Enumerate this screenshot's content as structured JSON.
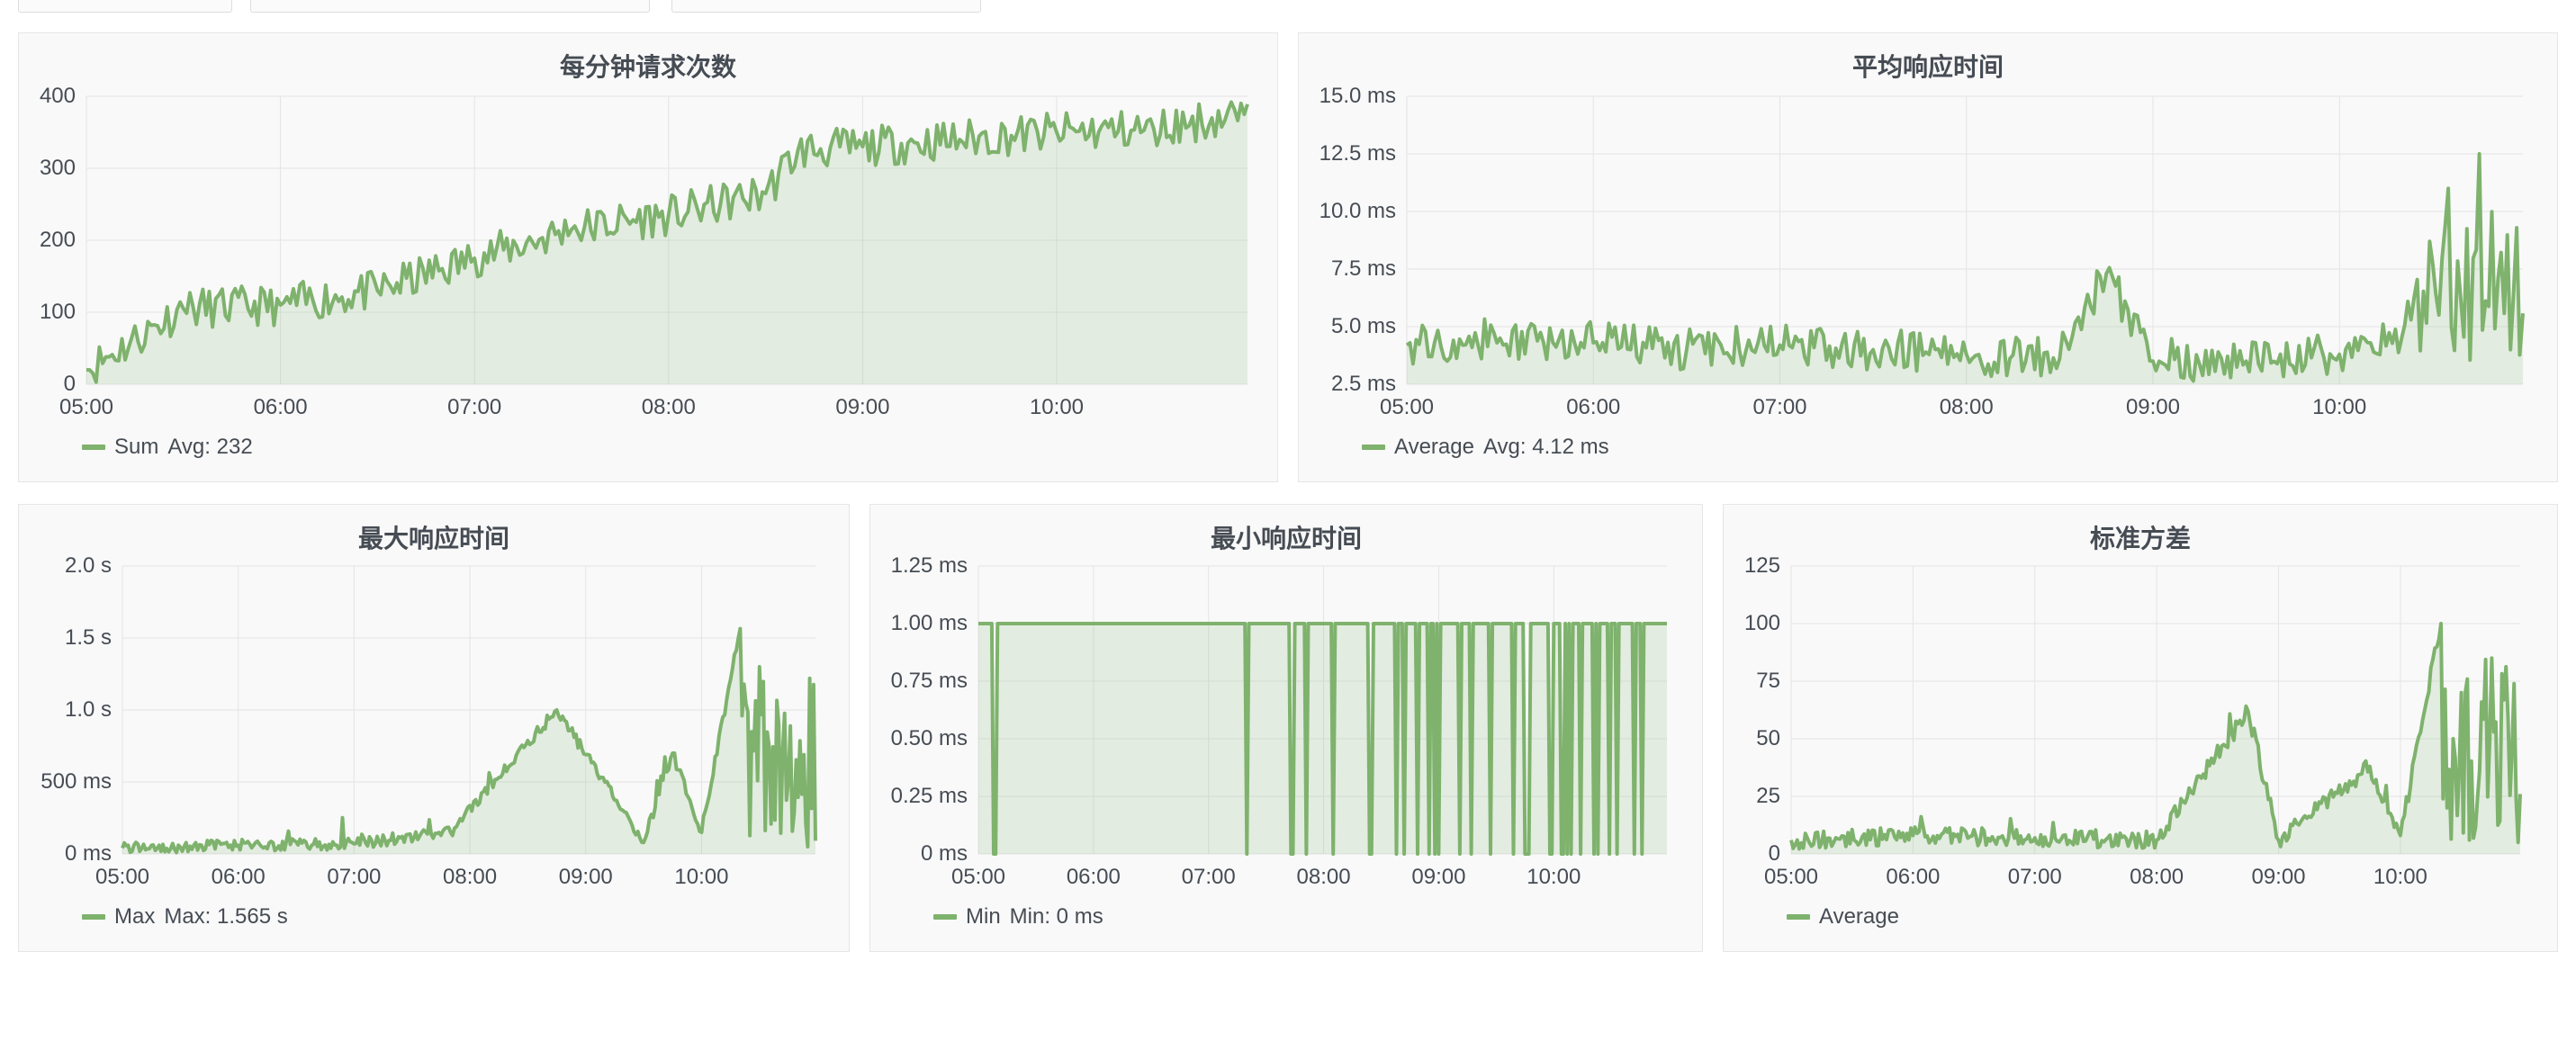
{
  "colors": {
    "series": "#7eb26d",
    "fill": "rgba(126,178,109,0.18)",
    "grid": "#e4e4e4"
  },
  "panels": [
    {
      "title": "每分钟请求次数",
      "legend": {
        "name": "Sum",
        "stat": "Avg: 232"
      },
      "chart_data": {
        "type": "area",
        "title": "每分钟请求次数",
        "x_ticks": [
          "05:00",
          "06:00",
          "07:00",
          "08:00",
          "09:00",
          "10:00"
        ],
        "y_ticks": [
          "0",
          "100",
          "200",
          "300",
          "400"
        ],
        "xlim": [
          "05:00",
          "10:59"
        ],
        "ylim": [
          0,
          400
        ],
        "grid": true,
        "legend_position": "bottom-left",
        "series": [
          {
            "name": "Sum",
            "x": [
              "05:00",
              "05:30",
              "06:00",
              "06:30",
              "07:00",
              "07:30",
              "08:00",
              "08:30",
              "08:40",
              "09:00",
              "09:30",
              "10:00",
              "10:30",
              "10:58"
            ],
            "values": [
              20,
              105,
              110,
              130,
              175,
              215,
              235,
              265,
              325,
              330,
              340,
              350,
              355,
              375
            ]
          }
        ]
      }
    },
    {
      "title": "平均响应时间",
      "legend": {
        "name": "Average",
        "stat": "Avg: 4.12 ms"
      },
      "chart_data": {
        "type": "area",
        "title": "平均响应时间",
        "x_ticks": [
          "05:00",
          "06:00",
          "07:00",
          "08:00",
          "09:00",
          "10:00"
        ],
        "y_ticks": [
          "2.5 ms",
          "5.0 ms",
          "7.5 ms",
          "10.0 ms",
          "12.5 ms",
          "15.0 ms"
        ],
        "xlim": [
          "05:00",
          "10:59"
        ],
        "ylim": [
          2.5,
          15
        ],
        "grid": true,
        "legend_position": "bottom-left",
        "series": [
          {
            "name": "Average",
            "x": [
              "05:00",
              "05:30",
              "06:00",
              "06:30",
              "07:00",
              "07:30",
              "08:00",
              "08:30",
              "08:45",
              "09:00",
              "09:30",
              "10:00",
              "10:20",
              "10:35",
              "10:45",
              "10:55"
            ],
            "values": [
              4.2,
              4.5,
              4.3,
              4.0,
              4.2,
              4.0,
              3.8,
              3.6,
              7.3,
              3.5,
              3.5,
              3.8,
              4.5,
              11.0,
              12.5,
              4.0
            ]
          }
        ]
      }
    },
    {
      "title": "最大响应时间",
      "legend": {
        "name": "Max",
        "stat": "Max: 1.565 s"
      },
      "chart_data": {
        "type": "area",
        "title": "最大响应时间",
        "x_ticks": [
          "05:00",
          "06:00",
          "07:00",
          "08:00",
          "09:00",
          "10:00"
        ],
        "y_ticks": [
          "0 ms",
          "500 ms",
          "1.0 s",
          "1.5 s",
          "2.0 s"
        ],
        "xlim": [
          "05:00",
          "10:59"
        ],
        "ylim": [
          0,
          2000
        ],
        "grid": true,
        "legend_position": "bottom-left",
        "series": [
          {
            "name": "Max",
            "x": [
              "05:00",
              "06:00",
              "07:00",
              "07:50",
              "08:45",
              "09:30",
              "09:45",
              "10:00",
              "10:20",
              "10:30",
              "10:40",
              "10:55"
            ],
            "values": [
              40,
              60,
              70,
              150,
              1000,
              80,
              700,
              150,
              1565,
              1300,
              900,
              50
            ]
          }
        ]
      }
    },
    {
      "title": "最小响应时间",
      "legend": {
        "name": "Min",
        "stat": "Min: 0 ms"
      },
      "chart_data": {
        "type": "area",
        "title": "最小响应时间",
        "x_ticks": [
          "05:00",
          "06:00",
          "07:00",
          "08:00",
          "09:00",
          "10:00"
        ],
        "y_ticks": [
          "0 ms",
          "0.25 ms",
          "0.50 ms",
          "0.75 ms",
          "1.00 ms",
          "1.25 ms"
        ],
        "xlim": [
          "05:00",
          "10:59"
        ],
        "ylim": [
          0,
          1.25
        ],
        "grid": true,
        "legend_position": "bottom-left",
        "series": [
          {
            "name": "Min",
            "x": [
              "05:00",
              "05:10",
              "07:20",
              "07:40",
              "08:00",
              "08:20",
              "08:40",
              "09:00",
              "09:20",
              "09:40",
              "10:00",
              "10:20",
              "10:40",
              "10:58"
            ],
            "values": [
              1,
              0,
              1,
              0,
              1,
              0,
              1,
              0,
              1,
              0,
              1,
              0,
              1,
              1
            ]
          }
        ]
      }
    },
    {
      "title": "标准方差",
      "legend": {
        "name": "Average",
        "stat": ""
      },
      "chart_data": {
        "type": "area",
        "title": "标准方差",
        "x_ticks": [
          "05:00",
          "06:00",
          "07:00",
          "08:00",
          "09:00",
          "10:00"
        ],
        "y_ticks": [
          "0",
          "25",
          "50",
          "75",
          "100",
          "125"
        ],
        "xlim": [
          "05:00",
          "10:59"
        ],
        "ylim": [
          0,
          125
        ],
        "grid": true,
        "legend_position": "bottom-left",
        "series": [
          {
            "name": "Average",
            "x": [
              "05:00",
              "06:00",
              "07:00",
              "08:00",
              "08:45",
              "09:00",
              "09:45",
              "10:00",
              "10:20",
              "10:30",
              "10:45",
              "10:58"
            ],
            "values": [
              6,
              8,
              7,
              6,
              62,
              6,
              38,
              8,
              100,
              70,
              85,
              5
            ]
          }
        ]
      }
    }
  ]
}
